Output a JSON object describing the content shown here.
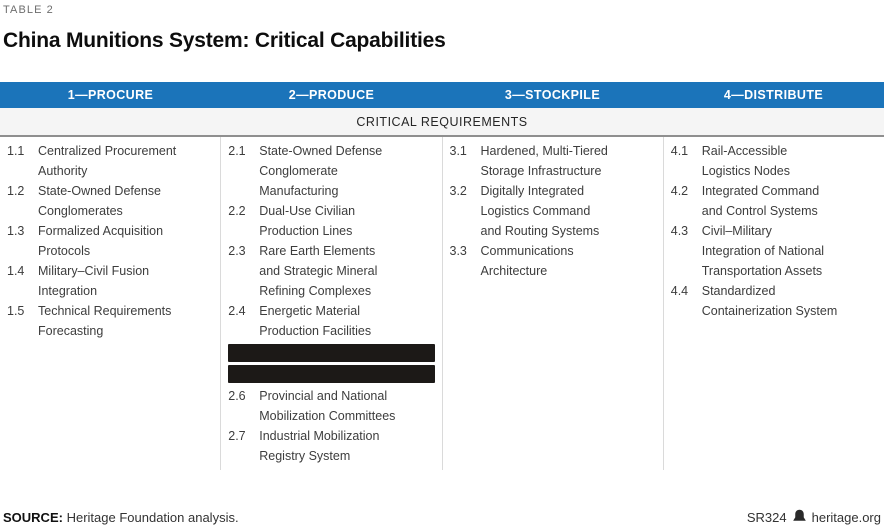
{
  "page": {
    "table_label": "TABLE 2",
    "title": "China Munitions System: Critical Capabilities"
  },
  "table": {
    "subheader": "CRITICAL REQUIREMENTS",
    "colors": {
      "header_bg": "#1b74ba",
      "header_text": "#ffffff",
      "subheader_bg": "#f5f5f5",
      "subheader_border": "#8f8f8f",
      "divider": "#dadada",
      "body_text": "#3d3d3d",
      "redaction": "#1c1917"
    },
    "columns": [
      {
        "header": "1—PROCURE",
        "items": [
          {
            "num": "1.1",
            "text": "Centralized Procurement\nAuthority"
          },
          {
            "num": "1.2",
            "text": "State-Owned Defense\nConglomerates"
          },
          {
            "num": "1.3",
            "text": "Formalized Acquisition\nProtocols"
          },
          {
            "num": "1.4",
            "text": "Military–Civil Fusion\nIntegration"
          },
          {
            "num": "1.5",
            "text": "Technical Requirements\nForecasting"
          }
        ]
      },
      {
        "header": "2—PRODUCE",
        "items": [
          {
            "num": "2.1",
            "text": "State-Owned Defense\nConglomerate\nManufacturing"
          },
          {
            "num": "2.2",
            "text": "Dual-Use Civilian\nProduction Lines"
          },
          {
            "num": "2.3",
            "text": "Rare Earth Elements\nand Strategic Mineral\nRefining Complexes"
          },
          {
            "num": "2.4",
            "text": "Energetic Material\nProduction Facilities"
          },
          {
            "redacted": true
          },
          {
            "redacted": true
          },
          {
            "num": "2.6",
            "text": "Provincial and National\nMobilization Committees"
          },
          {
            "num": "2.7",
            "text": "Industrial Mobilization\nRegistry System"
          }
        ]
      },
      {
        "header": "3—STOCKPILE",
        "items": [
          {
            "num": "3.1",
            "text": "Hardened, Multi-Tiered\nStorage Infrastructure"
          },
          {
            "num": "3.2",
            "text": "Digitally Integrated\nLogistics Command\nand Routing Systems"
          },
          {
            "num": "3.3",
            "text": "Communications\nArchitecture"
          }
        ]
      },
      {
        "header": "4—DISTRIBUTE",
        "items": [
          {
            "num": "4.1",
            "text": "Rail-Accessible\nLogistics Nodes"
          },
          {
            "num": "4.2",
            "text": "Integrated Command\nand Control Systems"
          },
          {
            "num": "4.3",
            "text": "Civil–Military\nIntegration of National\nTransportation Assets"
          },
          {
            "num": "4.4",
            "text": "Standardized\nContainerization System"
          }
        ]
      }
    ]
  },
  "footer": {
    "source_label": "SOURCE:",
    "source_text": "Heritage Foundation analysis.",
    "report_id": "SR324",
    "site": "heritage.org",
    "logo_icon": "heritage-bell"
  }
}
